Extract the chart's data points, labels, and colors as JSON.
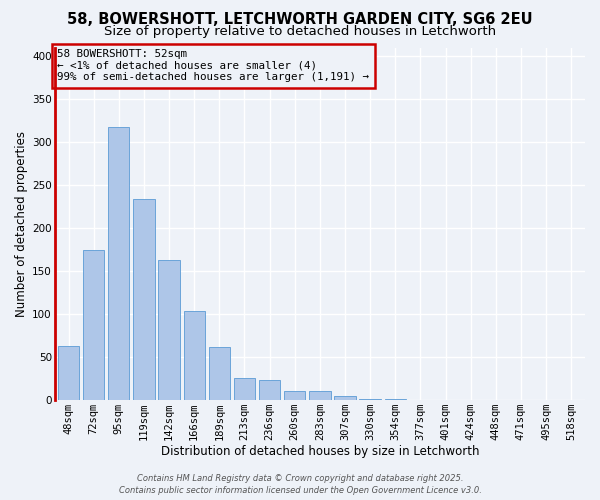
{
  "title": "58, BOWERSHOTT, LETCHWORTH GARDEN CITY, SG6 2EU",
  "subtitle": "Size of property relative to detached houses in Letchworth",
  "xlabel": "Distribution of detached houses by size in Letchworth",
  "ylabel": "Number of detached properties",
  "bin_labels": [
    "48sqm",
    "72sqm",
    "95sqm",
    "119sqm",
    "142sqm",
    "166sqm",
    "189sqm",
    "213sqm",
    "236sqm",
    "260sqm",
    "283sqm",
    "307sqm",
    "330sqm",
    "354sqm",
    "377sqm",
    "401sqm",
    "424sqm",
    "448sqm",
    "471sqm",
    "495sqm",
    "518sqm"
  ],
  "bar_values": [
    63,
    175,
    318,
    234,
    163,
    104,
    62,
    26,
    23,
    11,
    11,
    5,
    1,
    1,
    0,
    0,
    0,
    0,
    0,
    0,
    0
  ],
  "bar_color": "#aec6e8",
  "bar_edge_color": "#5b9bd5",
  "highlight_color": "#cc0000",
  "ylim": [
    0,
    410
  ],
  "yticks": [
    0,
    50,
    100,
    150,
    200,
    250,
    300,
    350,
    400
  ],
  "annotation_title": "58 BOWERSHOTT: 52sqm",
  "annotation_line1": "← <1% of detached houses are smaller (4)",
  "annotation_line2": "99% of semi-detached houses are larger (1,191) →",
  "footer_line1": "Contains HM Land Registry data © Crown copyright and database right 2025.",
  "footer_line2": "Contains public sector information licensed under the Open Government Licence v3.0.",
  "background_color": "#eef2f8",
  "grid_color": "#ffffff",
  "title_fontsize": 10.5,
  "subtitle_fontsize": 9.5,
  "axis_label_fontsize": 8.5,
  "tick_fontsize": 7.5,
  "annotation_fontsize": 7.8,
  "footer_fontsize": 6.0
}
